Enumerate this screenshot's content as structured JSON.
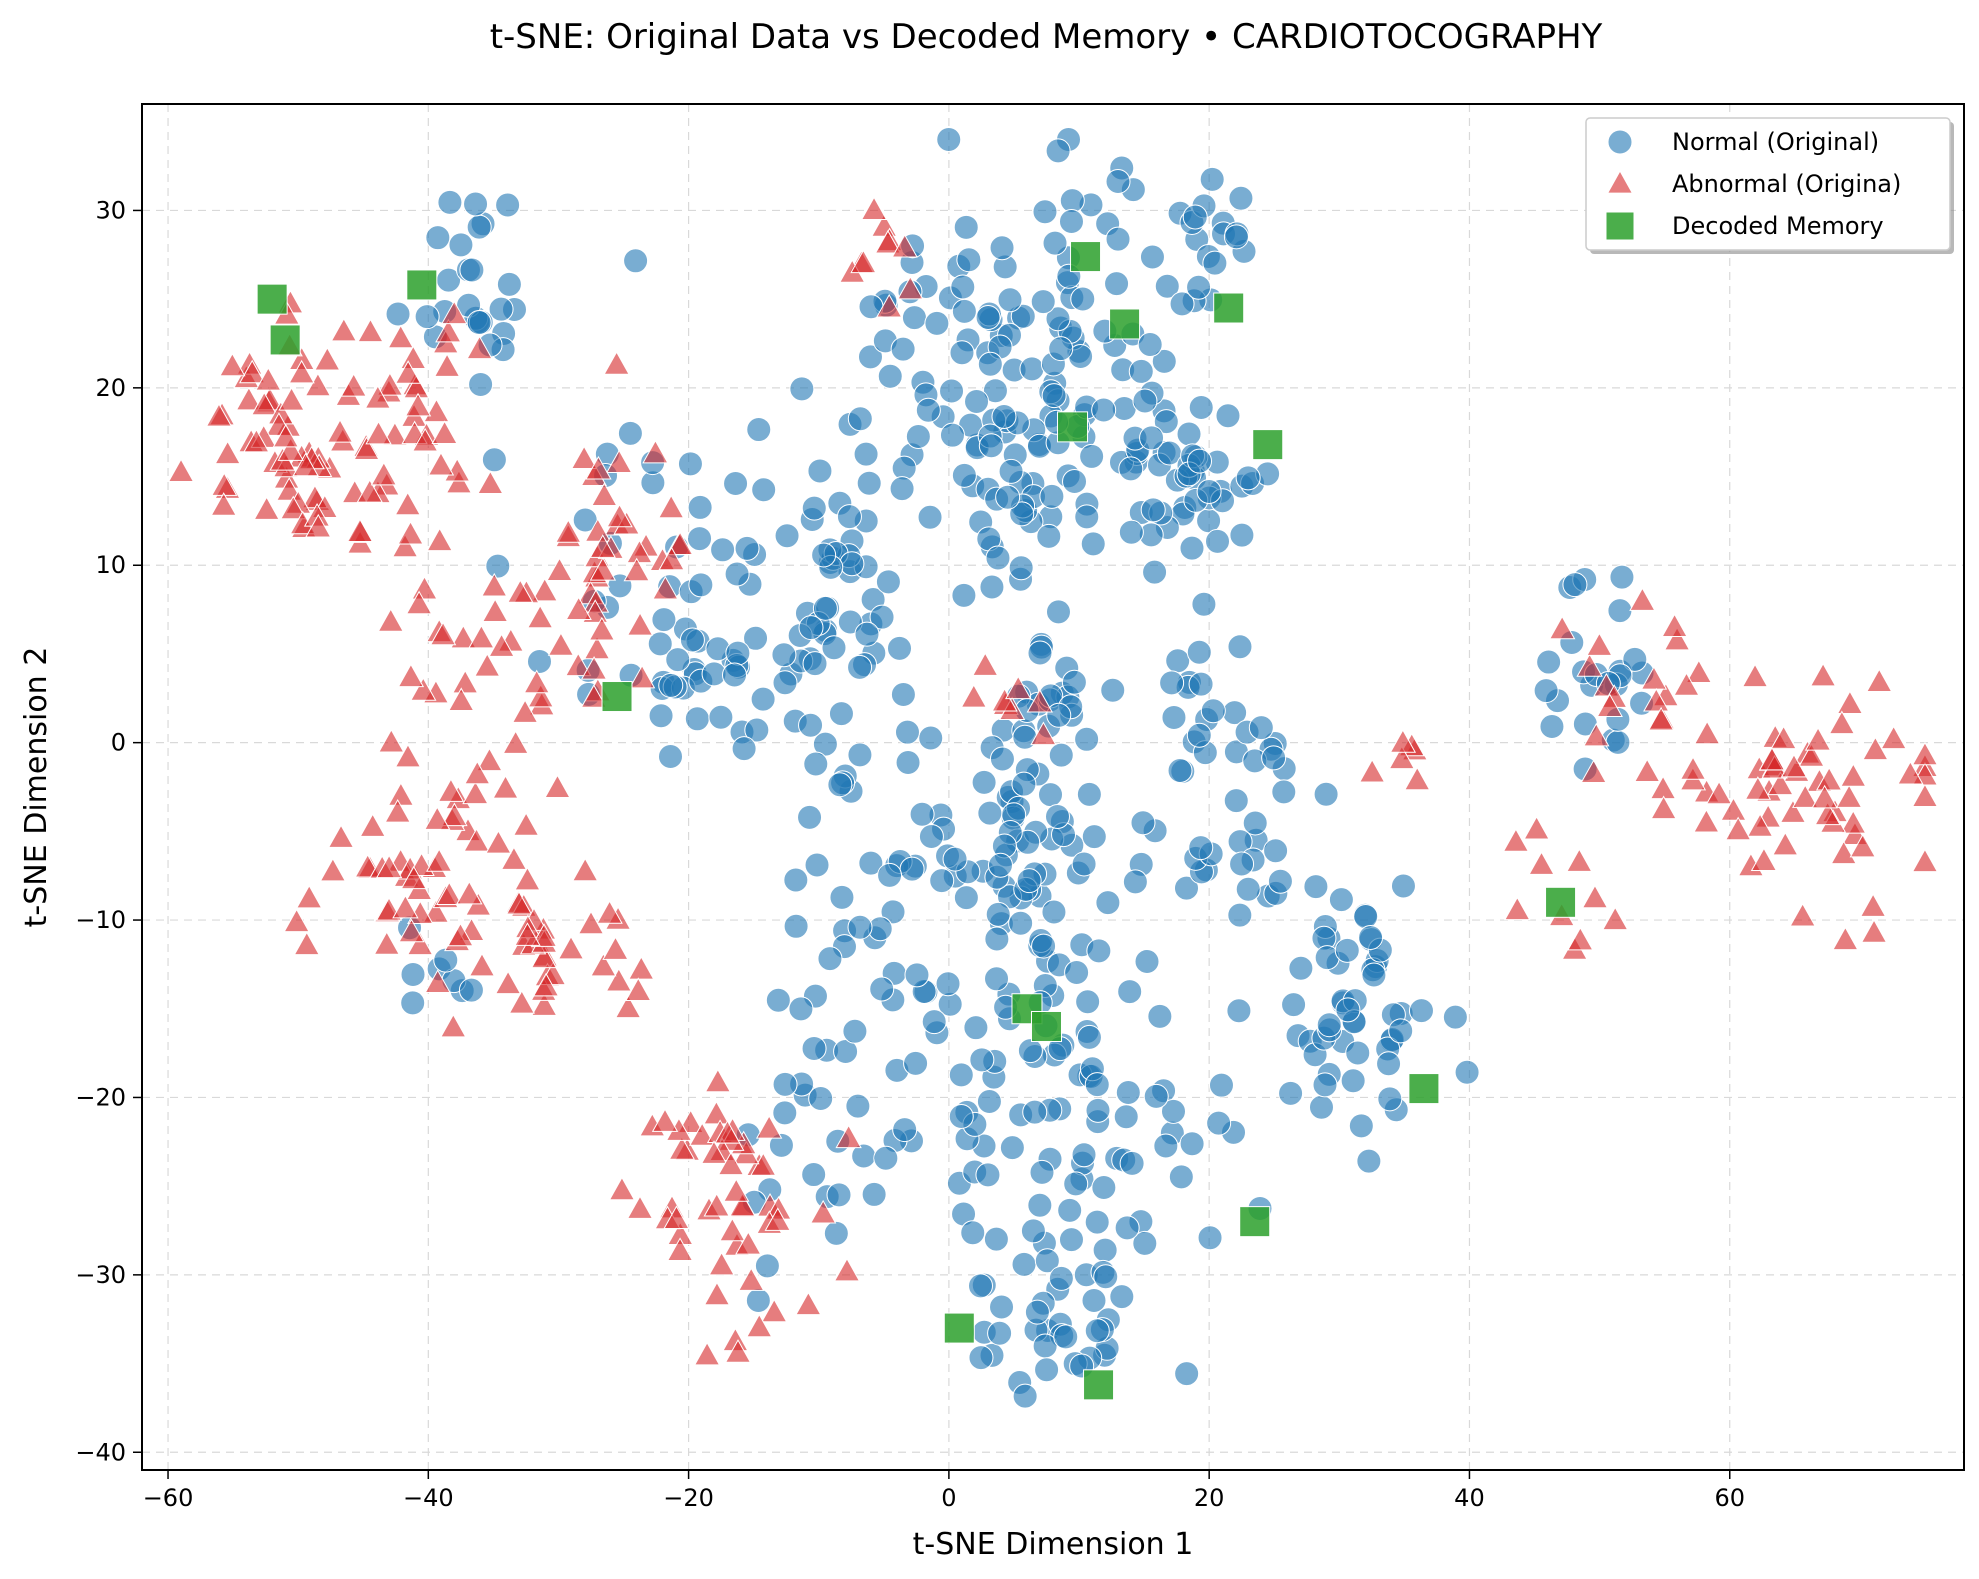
{
  "chart_data": {
    "type": "scatter",
    "title": "t-SNE: Original Data vs Decoded Memory • CARDIOTOCOGRAPHY",
    "xlabel": "t-SNE Dimension 1",
    "ylabel": "t-SNE Dimension 2",
    "xlim": [
      -62,
      78
    ],
    "ylim": [
      -41,
      36
    ],
    "xticks": [
      -60,
      -40,
      -20,
      0,
      20,
      40,
      60
    ],
    "yticks": [
      -40,
      -30,
      -20,
      -10,
      0,
      10,
      20,
      30
    ],
    "xtick_labels": [
      "−60",
      "−40",
      "−20",
      "0",
      "20",
      "40",
      "60"
    ],
    "ytick_labels": [
      "−40",
      "−30",
      "−20",
      "−10",
      "0",
      "10",
      "20",
      "30"
    ],
    "grid": true,
    "legend_position": "top-right",
    "series": [
      {
        "name": "Normal (Original)",
        "marker": "circle",
        "color": "#1f77b4",
        "clusters": [
          {
            "cx": -37,
            "cy": 26,
            "sx": 3,
            "sy": 3,
            "n": 25
          },
          {
            "cx": -24,
            "cy": 12,
            "sx": 5,
            "sy": 6,
            "n": 35
          },
          {
            "cx": -16,
            "cy": 3,
            "sx": 5,
            "sy": 3,
            "n": 35
          },
          {
            "cx": -9,
            "cy": 10,
            "sx": 3,
            "sy": 4,
            "n": 45
          },
          {
            "cx": 0,
            "cy": 22,
            "sx": 4,
            "sy": 5,
            "n": 35
          },
          {
            "cx": 10,
            "cy": 22,
            "sx": 6,
            "sy": 6,
            "n": 90
          },
          {
            "cx": 6,
            "cy": 15,
            "sx": 4,
            "sy": 2,
            "n": 30
          },
          {
            "cx": 18,
            "cy": 15,
            "sx": 4,
            "sy": 4,
            "n": 40
          },
          {
            "cx": 20,
            "cy": 28,
            "sx": 2,
            "sy": 2,
            "n": 15
          },
          {
            "cx": 7,
            "cy": 2,
            "sx": 3,
            "sy": 3,
            "n": 30
          },
          {
            "cx": 22,
            "cy": 2,
            "sx": 3,
            "sy": 3,
            "n": 25
          },
          {
            "cx": 6,
            "cy": -7,
            "sx": 5,
            "sy": 4,
            "n": 60
          },
          {
            "cx": 22,
            "cy": -6,
            "sx": 3,
            "sy": 2,
            "n": 20
          },
          {
            "cx": 31,
            "cy": -15,
            "sx": 3,
            "sy": 4,
            "n": 55
          },
          {
            "cx": 9,
            "cy": -20,
            "sx": 7,
            "sy": 4,
            "n": 80
          },
          {
            "cx": -6,
            "cy": -15,
            "sx": 4,
            "sy": 4,
            "n": 30
          },
          {
            "cx": 9,
            "cy": -32,
            "sx": 4,
            "sy": 3,
            "n": 40
          },
          {
            "cx": -10,
            "cy": -24,
            "sx": 3,
            "sy": 3,
            "n": 20
          },
          {
            "cx": -3,
            "cy": -5,
            "sx": 4,
            "sy": 3,
            "n": 20
          },
          {
            "cx": 50,
            "cy": 4,
            "sx": 2,
            "sy": 3,
            "n": 25
          },
          {
            "cx": -39,
            "cy": -12,
            "sx": 2,
            "sy": 2,
            "n": 8
          }
        ]
      },
      {
        "name": "Abnormal (Origina)",
        "marker": "triangle",
        "color": "#d62728",
        "clusters": [
          {
            "cx": -50,
            "cy": 17,
            "sx": 4,
            "sy": 3,
            "n": 70
          },
          {
            "cx": -40,
            "cy": 18,
            "sx": 3,
            "sy": 4,
            "n": 30
          },
          {
            "cx": -27,
            "cy": 10,
            "sx": 4,
            "sy": 4,
            "n": 45
          },
          {
            "cx": -34,
            "cy": 4,
            "sx": 4,
            "sy": 3,
            "n": 25
          },
          {
            "cx": -40,
            "cy": -8,
            "sx": 5,
            "sy": 3,
            "n": 60
          },
          {
            "cx": -30,
            "cy": -12,
            "sx": 3,
            "sy": 2,
            "n": 25
          },
          {
            "cx": -18,
            "cy": -25,
            "sx": 4,
            "sy": 3,
            "n": 40
          },
          {
            "cx": -12,
            "cy": -30,
            "sx": 3,
            "sy": 2,
            "n": 12
          },
          {
            "cx": 66,
            "cy": -3,
            "sx": 5,
            "sy": 3,
            "n": 60
          },
          {
            "cx": 52,
            "cy": 4,
            "sx": 3,
            "sy": 4,
            "n": 20
          },
          {
            "cx": 48,
            "cy": -9,
            "sx": 2,
            "sy": 2,
            "n": 10
          },
          {
            "cx": 35,
            "cy": 0,
            "sx": 1,
            "sy": 1,
            "n": 6
          },
          {
            "cx": -5,
            "cy": 27,
            "sx": 2,
            "sy": 2,
            "n": 10
          },
          {
            "cx": 5,
            "cy": 3,
            "sx": 2,
            "sy": 2,
            "n": 8
          }
        ]
      },
      {
        "name": "Decoded Memory",
        "marker": "square",
        "color": "#2ca02c",
        "points": [
          [
            -52,
            25
          ],
          [
            -51,
            22.7
          ],
          [
            -40.5,
            25.8
          ],
          [
            -25.5,
            2.6
          ],
          [
            10.5,
            27.4
          ],
          [
            13.5,
            23.6
          ],
          [
            21.5,
            24.5
          ],
          [
            9.5,
            17.8
          ],
          [
            24.5,
            16.8
          ],
          [
            6,
            -15
          ],
          [
            7.5,
            -16
          ],
          [
            36.5,
            -19.5
          ],
          [
            47,
            -9
          ],
          [
            0.8,
            -33
          ],
          [
            11.5,
            -36.2
          ],
          [
            23.5,
            -27
          ]
        ]
      }
    ]
  }
}
